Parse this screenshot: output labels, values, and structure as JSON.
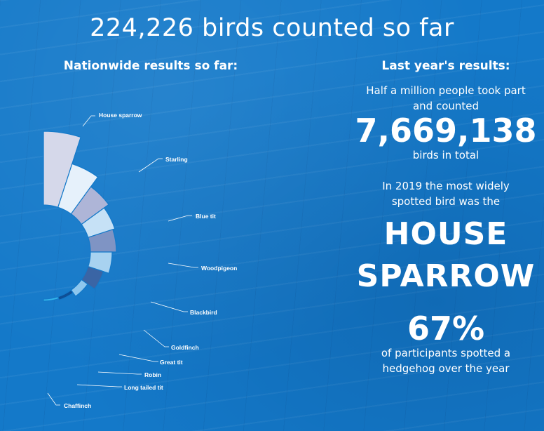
{
  "title": "224,226 birds counted so far",
  "left_heading": "Nationwide results so far:",
  "right": {
    "heading": "Last year's results:",
    "line1": "Half a million people took part",
    "line2": "and counted",
    "total": "7,669,138",
    "total_suffix": "birds in total",
    "line3": "In 2019 the most widely",
    "line4": "spotted bird was the",
    "bird_1": "HOUSE",
    "bird_2": "SPARROW",
    "percent": "67%",
    "line5": "of participants spotted a",
    "line6": "hedgehog over the year"
  },
  "chart_data": {
    "type": "pie",
    "variant": "half-rose",
    "categories": [
      "House sparrow",
      "Starling",
      "Blue tit",
      "Woodpigeon",
      "Blackbird",
      "Goldfinch",
      "Great tit",
      "Robin",
      "Long tailed tit",
      "Chaffinch"
    ],
    "values": [
      172,
      132,
      115,
      107,
      104,
      98,
      90,
      78,
      72,
      70
    ],
    "colors": [
      "#d5d8ea",
      "#e6f1fb",
      "#aeb5d7",
      "#c6e1f6",
      "#7f94c4",
      "#a8d2f0",
      "#3a65a5",
      "#8ec7ee",
      "#0e4f96",
      "#34b6ea"
    ]
  }
}
